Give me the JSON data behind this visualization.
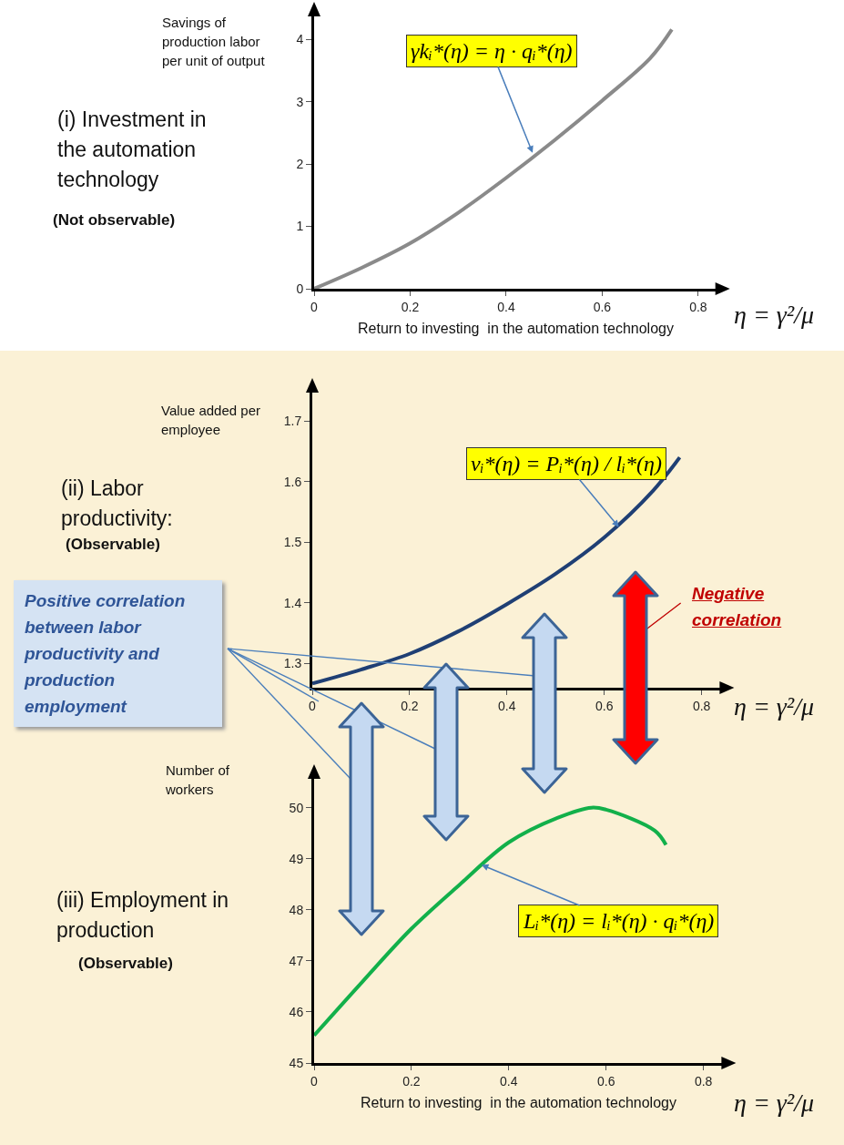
{
  "chart_data": [
    {
      "type": "line",
      "title": "(i) Investment in the automation technology",
      "ylabel": "Savings of production labor per unit of output",
      "xlabel": "Return to investing  in the automation technology",
      "annotations": [
        {
          "text": "γkᵢ*(η) = η · qᵢ*(η)",
          "x": 0.455,
          "y": 2.18
        },
        "η = γ²/μ",
        "(Not observable)"
      ],
      "x": [
        0,
        0.1,
        0.2,
        0.3,
        0.4,
        0.5,
        0.6,
        0.7,
        0.745
      ],
      "series": [
        {
          "color": "#8a8a8a",
          "values": [
            0,
            0.34,
            0.73,
            1.22,
            1.78,
            2.38,
            3.02,
            3.7,
            4.16
          ]
        }
      ],
      "xlim": [
        0,
        0.84
      ],
      "ylim": [
        0,
        4.4
      ],
      "xticks": [
        0,
        0.2,
        0.4,
        0.6,
        0.8
      ],
      "yticks": [
        0,
        1,
        2,
        3,
        4
      ]
    },
    {
      "type": "line",
      "title": "(ii) Labor productivity:",
      "ylabel": "Value added per employee",
      "annotations": [
        {
          "text": "vᵢ*(η) = Pᵢ*(η) / lᵢ*(η)",
          "x": 0.63,
          "y": 1.525
        },
        "η = γ²/μ",
        "Positive correlation between labor productivity and production employment",
        "Negative correlation",
        "(Observable)"
      ],
      "x": [
        0,
        0.1,
        0.2,
        0.3,
        0.4,
        0.5,
        0.6,
        0.7,
        0.755
      ],
      "series": [
        {
          "color": "#1f3f74",
          "values": [
            1.267,
            1.29,
            1.316,
            1.353,
            1.398,
            1.448,
            1.508,
            1.585,
            1.64
          ]
        }
      ],
      "xlim": [
        0,
        0.84
      ],
      "ylim": [
        1.26,
        1.75
      ],
      "xticks": [
        0,
        0.2,
        0.4,
        0.6,
        0.8
      ],
      "yticks": [
        1.3,
        1.4,
        1.5,
        1.6,
        1.7
      ]
    },
    {
      "type": "line",
      "title": "(iii) Employment in production",
      "ylabel": "Number of workers",
      "xlabel": "Return to investing  in the automation technology",
      "annotations": [
        {
          "text": "Lᵢ*(η) = lᵢ*(η) · qᵢ*(η)",
          "x": 0.344,
          "y": 48.88
        },
        "η = γ²/μ",
        "(Observable)"
      ],
      "x": [
        0,
        0.1,
        0.2,
        0.3,
        0.4,
        0.5,
        0.57,
        0.6,
        0.7,
        0.723
      ],
      "series": [
        {
          "color": "#12b04a",
          "values": [
            45.54,
            46.6,
            47.63,
            48.5,
            49.32,
            49.8,
            50,
            49.96,
            49.55,
            49.27
          ]
        }
      ],
      "xlim": [
        0,
        0.84
      ],
      "ylim": [
        45,
        50.6
      ],
      "xticks": [
        0,
        0.2,
        0.4,
        0.6,
        0.8
      ],
      "yticks": [
        45,
        46,
        47,
        48,
        49,
        50
      ]
    }
  ]
}
